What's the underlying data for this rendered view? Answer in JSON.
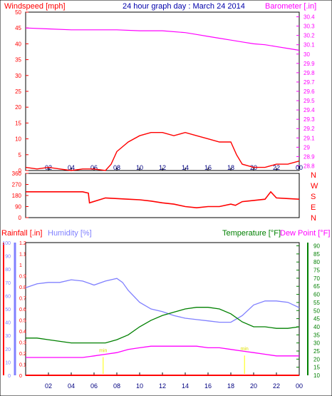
{
  "chart_data": [
    {
      "type": "line",
      "title": "24 hour graph day : March 24 2014",
      "left_label": "Windspeed [mph]",
      "right_label": "Barometer [.in]",
      "x_ticks": [
        "02",
        "04",
        "06",
        "08",
        "10",
        "12",
        "14",
        "16",
        "18",
        "20",
        "22",
        "00"
      ],
      "y_left_ticks": [
        "0",
        "5",
        "10",
        "15",
        "20",
        "25",
        "30",
        "35",
        "40",
        "45",
        "50"
      ],
      "y_left_range": [
        0,
        50
      ],
      "y_right_ticks": [
        "28.8",
        "28.9",
        "29",
        "29.1",
        "29.2",
        "29.3",
        "29.4",
        "29.5",
        "29.6",
        "29.7",
        "29.8",
        "29.9",
        "30",
        "30.1",
        "30.2",
        "30.3",
        "30.4"
      ],
      "y_right_range": [
        28.75,
        30.45
      ],
      "series": [
        {
          "name": "Windspeed [mph]",
          "color": "#ff0000",
          "x": [
            0,
            1,
            2,
            3,
            4,
            5,
            6,
            7,
            7.5,
            8,
            9,
            10,
            11,
            12,
            13,
            14,
            15,
            16,
            17,
            18,
            18.5,
            19,
            20,
            21,
            22,
            23,
            24
          ],
          "values": [
            1,
            0.5,
            1,
            0.5,
            0,
            0.5,
            0.5,
            0,
            2,
            6,
            9,
            11,
            12,
            12,
            11,
            12,
            11,
            10,
            9,
            9,
            5,
            2,
            1,
            1,
            2,
            2,
            3
          ]
        },
        {
          "name": "Barometer [.in]",
          "color": "#ff00ff",
          "x": [
            0,
            2,
            4,
            6,
            8,
            10,
            12,
            14,
            15,
            16,
            17,
            18,
            19,
            20,
            21,
            22,
            23,
            24
          ],
          "values": [
            30.28,
            30.27,
            30.26,
            30.26,
            30.26,
            30.25,
            30.25,
            30.23,
            30.21,
            30.19,
            30.17,
            30.15,
            30.13,
            30.11,
            30.1,
            30.08,
            30.06,
            30.04
          ]
        }
      ]
    },
    {
      "type": "line",
      "right_label": "N W S E N",
      "compass": [
        "N",
        "W",
        "S",
        "E",
        "N"
      ],
      "x_ticks": [
        "02",
        "04",
        "06",
        "08",
        "10",
        "12",
        "14",
        "16",
        "18",
        "20",
        "22",
        "00"
      ],
      "y_left_ticks": [
        "0",
        "90",
        "180",
        "270",
        "360"
      ],
      "y_left_range": [
        0,
        360
      ],
      "series": [
        {
          "name": "Wind direction",
          "color": "#ff0000",
          "x": [
            0,
            1,
            2,
            3,
            4,
            5,
            5.5,
            5.6,
            7,
            8,
            9,
            10,
            11,
            12,
            13,
            14,
            15,
            16,
            17,
            18,
            18.4,
            19,
            20,
            21,
            21.5,
            22,
            23,
            24
          ],
          "values": [
            210,
            210,
            210,
            210,
            210,
            210,
            200,
            120,
            160,
            155,
            150,
            145,
            135,
            120,
            110,
            90,
            80,
            90,
            90,
            110,
            100,
            130,
            140,
            150,
            210,
            160,
            155,
            150
          ]
        }
      ]
    },
    {
      "type": "line",
      "left_label": "Rainfall [.in]",
      "mid_label": "Humidity [%]",
      "right_label": "Temperature [°F]",
      "right_label2": "Dew Point [°F]",
      "x_ticks": [
        "02",
        "04",
        "06",
        "08",
        "10",
        "12",
        "14",
        "16",
        "18",
        "20",
        "22",
        "00"
      ],
      "rain_ticks": [
        "0",
        "0.1",
        "0.2",
        "0.3",
        "0.4",
        "0.5",
        "0.6",
        "0.7",
        "0.8",
        "0.9",
        "1",
        "1.1",
        "1.2"
      ],
      "rain_range": [
        0,
        1.2
      ],
      "humidity_ticks": [
        "0",
        "10",
        "20",
        "30",
        "40",
        "50",
        "60",
        "70",
        "80",
        "90",
        "100"
      ],
      "humidity_range": [
        0,
        100
      ],
      "temp_ticks": [
        "10",
        "15",
        "20",
        "25",
        "30",
        "35",
        "40",
        "45",
        "50",
        "55",
        "60",
        "65",
        "70",
        "75",
        "80",
        "85",
        "90"
      ],
      "temp_range": [
        10,
        92
      ],
      "annotations": [
        "min",
        "min"
      ],
      "series": [
        {
          "name": "Humidity [%]",
          "color": "#8080ff",
          "x": [
            0,
            1,
            2,
            3,
            4,
            5,
            6,
            7,
            8,
            8.5,
            9,
            10,
            11,
            12,
            13,
            14,
            15,
            16,
            17,
            18,
            19,
            20,
            21,
            22,
            23,
            24
          ],
          "values": [
            66,
            69,
            70,
            70,
            72,
            71,
            68,
            71,
            73,
            70,
            64,
            55,
            50,
            48,
            45,
            43,
            42,
            41,
            40,
            40,
            45,
            53,
            56,
            56,
            55,
            51
          ]
        },
        {
          "name": "Temperature [°F]",
          "color": "#008000",
          "x": [
            0,
            1,
            2,
            3,
            4,
            5,
            6,
            7,
            8,
            9,
            10,
            11,
            12,
            13,
            14,
            15,
            16,
            17,
            18,
            19,
            20,
            21,
            22,
            23,
            24
          ],
          "values": [
            33,
            33,
            32,
            31,
            30,
            30,
            30,
            30,
            32,
            35,
            40,
            44,
            47,
            49,
            51,
            52,
            52,
            51,
            48,
            43,
            40,
            40,
            39,
            39,
            40
          ]
        },
        {
          "name": "Dew Point [°F]",
          "color": "#ff00ff",
          "x": [
            0,
            1,
            2,
            3,
            4,
            5,
            6,
            7,
            8,
            9,
            10,
            11,
            12,
            13,
            14,
            15,
            16,
            17,
            18,
            19,
            20,
            21,
            22,
            23,
            24
          ],
          "values": [
            21,
            21,
            21,
            21,
            21,
            21,
            22,
            23,
            24,
            26,
            27,
            28,
            28,
            28,
            28,
            28,
            27,
            27,
            26,
            25,
            24,
            23,
            22,
            22,
            22
          ]
        },
        {
          "name": "Rainfall [.in]",
          "color": "#ff0000",
          "x": [
            0,
            24
          ],
          "values": [
            0,
            0
          ]
        }
      ]
    }
  ]
}
